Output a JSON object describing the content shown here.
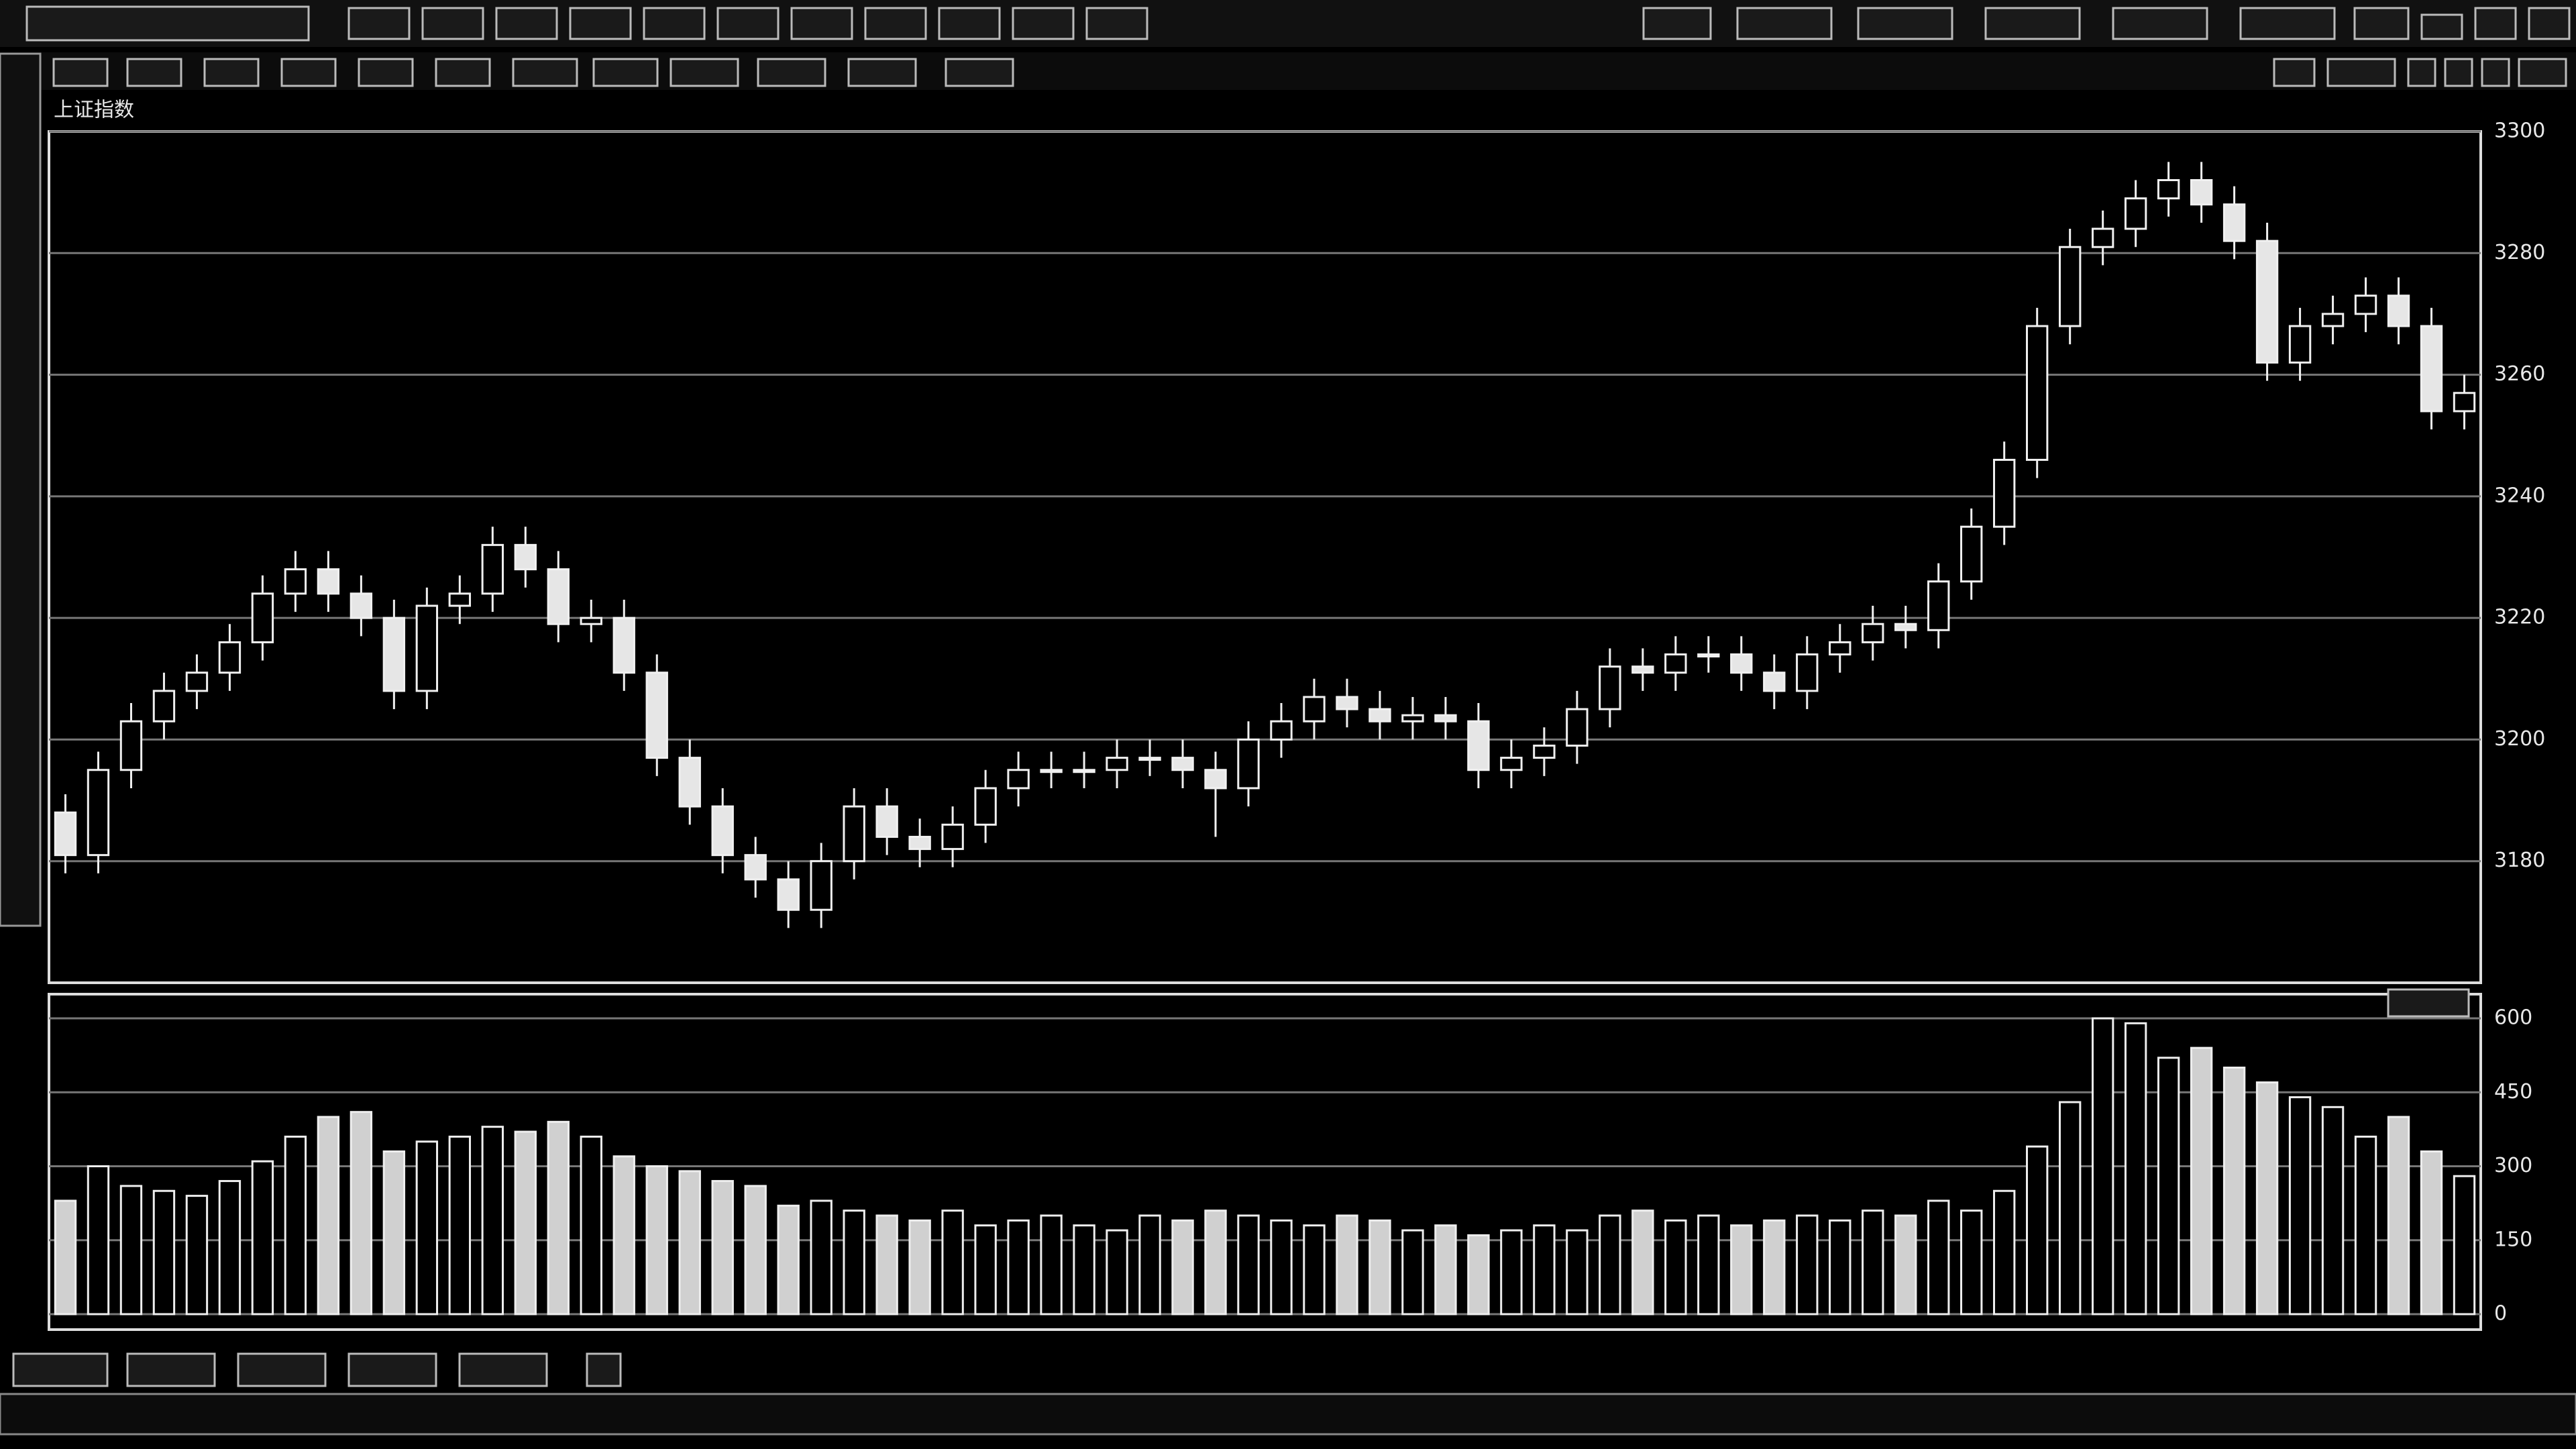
{
  "header": {
    "index_name": "上证指数"
  },
  "chart_data": {
    "type": "candlestick",
    "open": [
      3188,
      3181,
      3195,
      3203,
      3208,
      3211,
      3216,
      3224,
      3228,
      3224,
      3220,
      3208,
      3222,
      3224,
      3232,
      3228,
      3219,
      3220,
      3211,
      3197,
      3189,
      3181,
      3177,
      3172,
      3180,
      3189,
      3184,
      3182,
      3186,
      3192,
      3195,
      3195,
      3195,
      3197,
      3197,
      3195,
      3192,
      3200,
      3203,
      3207,
      3205,
      3203,
      3204,
      3203,
      3195,
      3197,
      3199,
      3205,
      3212,
      3211,
      3214,
      3214,
      3211,
      3208,
      3214,
      3216,
      3219,
      3218,
      3226,
      3235,
      3246,
      3268,
      3281,
      3284,
      3289,
      3292,
      3288,
      3282,
      3262,
      3268,
      3270,
      3273,
      3268,
      3254
    ],
    "high": [
      3191,
      3198,
      3206,
      3211,
      3214,
      3219,
      3227,
      3231,
      3231,
      3227,
      3223,
      3225,
      3227,
      3235,
      3235,
      3231,
      3223,
      3223,
      3214,
      3200,
      3192,
      3184,
      3180,
      3183,
      3192,
      3192,
      3187,
      3189,
      3195,
      3198,
      3198,
      3198,
      3200,
      3200,
      3200,
      3198,
      3203,
      3206,
      3210,
      3210,
      3208,
      3207,
      3207,
      3206,
      3200,
      3202,
      3208,
      3215,
      3215,
      3217,
      3217,
      3217,
      3214,
      3217,
      3219,
      3222,
      3222,
      3229,
      3238,
      3249,
      3271,
      3284,
      3287,
      3292,
      3295,
      3295,
      3291,
      3285,
      3271,
      3273,
      3276,
      3276,
      3271,
      3260
    ],
    "low": [
      3178,
      3178,
      3192,
      3200,
      3205,
      3208,
      3213,
      3221,
      3221,
      3217,
      3205,
      3205,
      3219,
      3221,
      3225,
      3216,
      3216,
      3208,
      3194,
      3186,
      3178,
      3174,
      3169,
      3169,
      3177,
      3181,
      3179,
      3179,
      3183,
      3189,
      3192,
      3192,
      3192,
      3194,
      3192,
      3184,
      3189,
      3197,
      3200,
      3202,
      3200,
      3200,
      3200,
      3192,
      3192,
      3194,
      3196,
      3202,
      3208,
      3208,
      3211,
      3208,
      3205,
      3205,
      3211,
      3213,
      3215,
      3215,
      3223,
      3232,
      3243,
      3265,
      3278,
      3281,
      3286,
      3285,
      3279,
      3259,
      3259,
      3265,
      3267,
      3265,
      3251,
      3251
    ],
    "close": [
      3181,
      3195,
      3203,
      3208,
      3211,
      3216,
      3224,
      3228,
      3224,
      3220,
      3208,
      3222,
      3224,
      3232,
      3228,
      3219,
      3220,
      3211,
      3197,
      3189,
      3181,
      3177,
      3172,
      3180,
      3189,
      3184,
      3182,
      3186,
      3192,
      3195,
      3195,
      3195,
      3197,
      3197,
      3195,
      3192,
      3200,
      3203,
      3207,
      3205,
      3203,
      3204,
      3203,
      3195,
      3197,
      3199,
      3205,
      3212,
      3211,
      3214,
      3214,
      3211,
      3208,
      3214,
      3216,
      3219,
      3218,
      3226,
      3235,
      3246,
      3268,
      3281,
      3284,
      3289,
      3292,
      3288,
      3282,
      3262,
      3268,
      3270,
      3273,
      3268,
      3254,
      3257
    ],
    "ylim": [
      3160,
      3300
    ],
    "yticks": [
      3180,
      3200,
      3220,
      3240,
      3260,
      3280,
      3300
    ],
    "grid": true,
    "volume": {
      "values": [
        230,
        300,
        260,
        250,
        240,
        270,
        310,
        360,
        400,
        410,
        330,
        350,
        360,
        380,
        370,
        390,
        360,
        320,
        300,
        290,
        270,
        260,
        220,
        230,
        210,
        200,
        190,
        210,
        180,
        190,
        200,
        180,
        170,
        200,
        190,
        210,
        200,
        190,
        180,
        200,
        190,
        170,
        180,
        160,
        170,
        180,
        170,
        200,
        210,
        190,
        200,
        180,
        190,
        200,
        190,
        210,
        200,
        230,
        210,
        250,
        340,
        430,
        600,
        590,
        520,
        540,
        500,
        470,
        440,
        420,
        360,
        400,
        330,
        280
      ],
      "ylim": [
        0,
        600
      ],
      "yticks": [
        0,
        150,
        300,
        450,
        600
      ]
    }
  }
}
